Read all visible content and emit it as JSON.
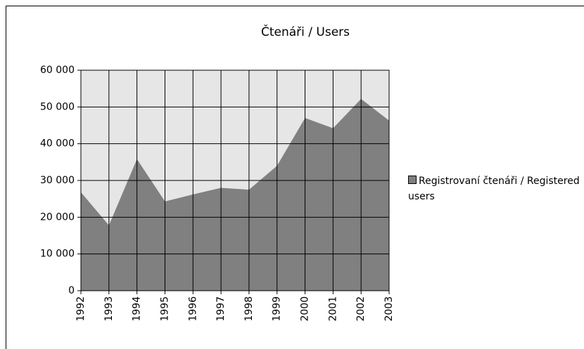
{
  "chart_data": {
    "type": "area",
    "title": "Čtenáři / Users",
    "categories": [
      "1992",
      "1993",
      "1994",
      "1995",
      "1996",
      "1997",
      "1998",
      "1999",
      "2000",
      "2001",
      "2002",
      "2003"
    ],
    "series": [
      {
        "name": "Registrovaní čtenáři / Registered users",
        "color": "#808080",
        "values": [
          26800,
          17800,
          35800,
          24300,
          26200,
          28000,
          27500,
          34000,
          47000,
          44200,
          52200,
          46300
        ]
      }
    ],
    "ylim": [
      0,
      60000
    ],
    "yticks": [
      0,
      {
        "value": 10000,
        "label": "10 000"
      },
      {
        "value": 20000,
        "label": "20 000"
      },
      {
        "value": 30000,
        "label": "30 000"
      },
      {
        "value": 40000,
        "label": "40 000"
      },
      {
        "value": 50000,
        "label": "50 000"
      },
      {
        "value": 60000,
        "label": "60 000"
      }
    ],
    "grid": true,
    "plot_background": "#e6e6e6",
    "legend": "right"
  }
}
